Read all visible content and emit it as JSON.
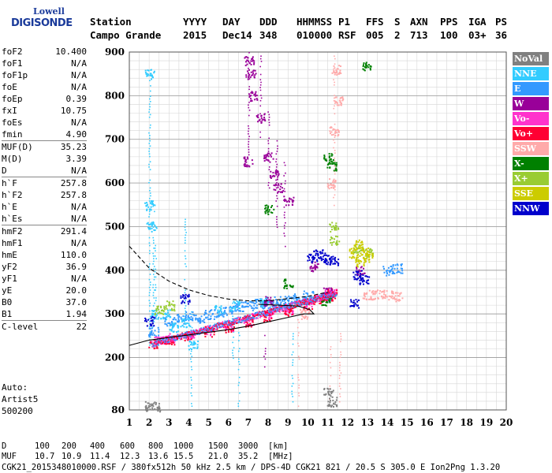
{
  "logo": {
    "line1": "Lowell",
    "line2": "DIGISONDE"
  },
  "header": {
    "row1": [
      "Station",
      "YYYY",
      "DAY",
      "DDD",
      "HHMMSS",
      "P1",
      "FFS",
      "S",
      "AXN",
      "PPS",
      "IGA",
      "PS"
    ],
    "row2": [
      "Campo Grande",
      "2015",
      "Dec14",
      "348",
      "010000",
      "RSF",
      "005",
      "2",
      "713",
      "100",
      "03+",
      "36"
    ]
  },
  "params": [
    {
      "name": "foF2",
      "value": "10.400",
      "sep": false
    },
    {
      "name": "foF1",
      "value": "N/A",
      "sep": false
    },
    {
      "name": "foF1p",
      "value": "N/A",
      "sep": false
    },
    {
      "name": "foE",
      "value": "N/A",
      "sep": false
    },
    {
      "name": "foEp",
      "value": "0.39",
      "sep": false
    },
    {
      "name": "fxI",
      "value": "10.75",
      "sep": false
    },
    {
      "name": "foEs",
      "value": "N/A",
      "sep": false
    },
    {
      "name": "fmin",
      "value": "4.90",
      "sep": false
    },
    {
      "name": "MUF(D)",
      "value": "35.23",
      "sep": true
    },
    {
      "name": "M(D)",
      "value": "3.39",
      "sep": false
    },
    {
      "name": "D",
      "value": "N/A",
      "sep": false
    },
    {
      "name": "h`F",
      "value": "257.8",
      "sep": true
    },
    {
      "name": "h`F2",
      "value": "257.8",
      "sep": false
    },
    {
      "name": "h`E",
      "value": "N/A",
      "sep": false
    },
    {
      "name": "h`Es",
      "value": "N/A",
      "sep": false
    },
    {
      "name": "hmF2",
      "value": "291.4",
      "sep": true
    },
    {
      "name": "hmF1",
      "value": "N/A",
      "sep": false
    },
    {
      "name": "hmE",
      "value": "110.0",
      "sep": false
    },
    {
      "name": "yF2",
      "value": "36.9",
      "sep": false
    },
    {
      "name": "yF1",
      "value": "N/A",
      "sep": false
    },
    {
      "name": "yE",
      "value": "20.0",
      "sep": false
    },
    {
      "name": "B0",
      "value": "37.0",
      "sep": false
    },
    {
      "name": "B1",
      "value": "1.94",
      "sep": false
    },
    {
      "name": "C-level",
      "value": "22",
      "sep": true
    }
  ],
  "auto": [
    "Auto:",
    "Artist5",
    "500200"
  ],
  "legend": [
    {
      "label": "NoVal",
      "color": "#808080"
    },
    {
      "label": "NNE",
      "color": "#33ccff"
    },
    {
      "label": "E",
      "color": "#3399ff"
    },
    {
      "label": "W",
      "color": "#990099"
    },
    {
      "label": "Vo-",
      "color": "#ff33cc"
    },
    {
      "label": "Vo+",
      "color": "#ff0033"
    },
    {
      "label": "SSW",
      "color": "#ffaaaa"
    },
    {
      "label": "X-",
      "color": "#008000"
    },
    {
      "label": "X+",
      "color": "#99cc33"
    },
    {
      "label": "SSE",
      "color": "#cccc00"
    },
    {
      "label": "NNW",
      "color": "#0000cc"
    }
  ],
  "footer": {
    "d_label": "D",
    "d_values": [
      "100",
      "200",
      "400",
      "600",
      "800",
      "1000",
      "1500",
      "3000",
      "[km]"
    ],
    "muf_label": "MUF",
    "muf_values": [
      "10.7",
      "10.9",
      "11.4",
      "12.3",
      "13.6",
      "15.5",
      "21.0",
      "35.2",
      "[MHz]"
    ],
    "info": "CGK21_2015348010000.RSF / 380fx512h 50 kHz 2.5 km / DPS-4D CGK21 821 / 20.5 S 305.0 E Ion2Png 1.3.20"
  },
  "chart_data": {
    "type": "scatter",
    "xlim": [
      1,
      20
    ],
    "ylim": [
      80,
      900
    ],
    "x_ticks": [
      1,
      2,
      3,
      4,
      5,
      6,
      7,
      8,
      9,
      10,
      11,
      12,
      13,
      14,
      15,
      16,
      17,
      18,
      19,
      20
    ],
    "y_ticks": [
      80,
      200,
      300,
      400,
      500,
      600,
      700,
      800,
      900
    ],
    "grid": true,
    "legend_position": "right",
    "series": [
      {
        "name": "E",
        "color": "#3399ff",
        "points": [
          [
            2.2,
            260
          ],
          [
            3.0,
            285
          ],
          [
            3.5,
            290
          ],
          [
            4.0,
            295
          ],
          [
            4.5,
            290
          ],
          [
            5.0,
            300
          ],
          [
            5.5,
            305
          ],
          [
            6.0,
            310
          ],
          [
            6.5,
            318
          ],
          [
            7.0,
            320
          ],
          [
            7.5,
            325
          ],
          [
            8.0,
            322
          ],
          [
            8.5,
            330
          ],
          [
            9.0,
            332
          ],
          [
            9.5,
            338
          ],
          [
            10.0,
            345
          ],
          [
            11.0,
            340
          ],
          [
            14.0,
            400
          ],
          [
            14.5,
            405
          ]
        ]
      },
      {
        "name": "NNE",
        "color": "#33ccff",
        "points": [
          [
            2.0,
            550
          ],
          [
            2.1,
            500
          ],
          [
            2.0,
            850
          ],
          [
            2.3,
            300
          ],
          [
            2.8,
            300
          ],
          [
            3.2,
            270
          ],
          [
            3.8,
            280
          ],
          [
            4.2,
            230
          ],
          [
            5.5,
            310
          ],
          [
            6.3,
            320
          ],
          [
            7.8,
            330
          ]
        ]
      },
      {
        "name": "Vo-",
        "color": "#ff33cc",
        "points": [
          [
            2.5,
            240
          ],
          [
            3.0,
            245
          ],
          [
            4.0,
            252
          ],
          [
            5.0,
            262
          ],
          [
            6.0,
            272
          ],
          [
            7.0,
            285
          ],
          [
            8.0,
            298
          ],
          [
            9.0,
            310
          ],
          [
            10.0,
            325
          ],
          [
            10.5,
            340
          ],
          [
            11.0,
            345
          ],
          [
            11.2,
            350
          ]
        ]
      },
      {
        "name": "Vo+",
        "color": "#ff0033",
        "points": [
          [
            2.2,
            232
          ],
          [
            3.0,
            240
          ],
          [
            4.0,
            250
          ],
          [
            5.0,
            260
          ],
          [
            6.0,
            270
          ],
          [
            7.0,
            282
          ],
          [
            8.0,
            295
          ],
          [
            9.0,
            308
          ],
          [
            10.0,
            322
          ],
          [
            10.5,
            335
          ],
          [
            11.0,
            342
          ],
          [
            11.2,
            348
          ]
        ]
      },
      {
        "name": "W",
        "color": "#990099",
        "points": [
          [
            7.0,
            880
          ],
          [
            7.1,
            850
          ],
          [
            7.2,
            800
          ],
          [
            7.6,
            750
          ],
          [
            7.0,
            650
          ],
          [
            8.0,
            660
          ],
          [
            8.3,
            620
          ],
          [
            8.5,
            590
          ],
          [
            9.0,
            560
          ],
          [
            8.0,
            330
          ],
          [
            10.3,
            410
          ],
          [
            11.0,
            350
          ],
          [
            12.6,
            400
          ]
        ]
      },
      {
        "name": "NNW",
        "color": "#0000cc",
        "points": [
          [
            2.0,
            285
          ],
          [
            10.2,
            430
          ],
          [
            10.5,
            440
          ],
          [
            10.8,
            430
          ],
          [
            11.0,
            425
          ],
          [
            11.3,
            420
          ],
          [
            12.5,
            390
          ],
          [
            12.8,
            380
          ],
          [
            12.3,
            325
          ],
          [
            3.8,
            335
          ]
        ]
      },
      {
        "name": "SSW",
        "color": "#ffaaaa",
        "points": [
          [
            11.4,
            860
          ],
          [
            11.5,
            790
          ],
          [
            11.3,
            720
          ],
          [
            11.2,
            600
          ],
          [
            9.8,
            300
          ],
          [
            13.0,
            345
          ],
          [
            13.5,
            345
          ],
          [
            14.0,
            345
          ],
          [
            14.5,
            340
          ]
        ]
      },
      {
        "name": "X-",
        "color": "#008000",
        "points": [
          [
            11.0,
            660
          ],
          [
            11.2,
            640
          ],
          [
            8.0,
            540
          ],
          [
            9.0,
            370
          ],
          [
            10.9,
            330
          ],
          [
            12.9,
            870
          ]
        ]
      },
      {
        "name": "X+",
        "color": "#99cc33",
        "points": [
          [
            11.3,
            500
          ],
          [
            11.3,
            470
          ],
          [
            12.5,
            450
          ],
          [
            13.0,
            440
          ],
          [
            2.5,
            310
          ],
          [
            3.0,
            320
          ]
        ]
      },
      {
        "name": "SSE",
        "color": "#cccc00",
        "points": [
          [
            12.3,
            440
          ],
          [
            12.5,
            460
          ],
          [
            12.8,
            445
          ],
          [
            13.0,
            430
          ],
          [
            12.6,
            420
          ]
        ]
      },
      {
        "name": "NoVal",
        "color": "#808080",
        "points": [
          [
            2.0,
            90
          ],
          [
            2.3,
            88
          ],
          [
            11.0,
            120
          ],
          [
            11.2,
            100
          ]
        ]
      }
    ],
    "vertical_streaks": [
      {
        "x": 2.0,
        "from": 230,
        "to": 860,
        "color": "#33ccff"
      },
      {
        "x": 2.2,
        "from": 260,
        "to": 560,
        "color": "#33ccff"
      },
      {
        "x": 2.3,
        "from": 290,
        "to": 480,
        "color": "#33ccff"
      },
      {
        "x": 3.8,
        "from": 290,
        "to": 520,
        "color": "#33ccff"
      },
      {
        "x": 4.1,
        "from": 90,
        "to": 310,
        "color": "#33ccff"
      },
      {
        "x": 6.2,
        "from": 200,
        "to": 330,
        "color": "#33ccff"
      },
      {
        "x": 6.5,
        "from": 90,
        "to": 300,
        "color": "#33ccff"
      },
      {
        "x": 7.0,
        "from": 660,
        "to": 900,
        "color": "#990099"
      },
      {
        "x": 7.6,
        "from": 700,
        "to": 900,
        "color": "#990099"
      },
      {
        "x": 8.0,
        "from": 590,
        "to": 780,
        "color": "#990099"
      },
      {
        "x": 8.4,
        "from": 500,
        "to": 700,
        "color": "#990099"
      },
      {
        "x": 8.8,
        "from": 450,
        "to": 650,
        "color": "#990099"
      },
      {
        "x": 7.8,
        "from": 180,
        "to": 260,
        "color": "#990099"
      },
      {
        "x": 11.3,
        "from": 550,
        "to": 900,
        "color": "#ffaaaa"
      },
      {
        "x": 11.1,
        "from": 100,
        "to": 230,
        "color": "#ffaaaa"
      },
      {
        "x": 11.6,
        "from": 100,
        "to": 260,
        "color": "#ffaaaa"
      },
      {
        "x": 9.2,
        "from": 100,
        "to": 260,
        "color": "#33ccff"
      },
      {
        "x": 9.5,
        "from": 90,
        "to": 290,
        "color": "#ffaaaa"
      }
    ],
    "profile_solid": [
      [
        1.0,
        228
      ],
      [
        2.0,
        240
      ],
      [
        3.0,
        246
      ],
      [
        4.0,
        252
      ],
      [
        5.0,
        258
      ],
      [
        6.0,
        264
      ],
      [
        7.0,
        272
      ],
      [
        8.0,
        282
      ],
      [
        9.0,
        292
      ],
      [
        9.8,
        300
      ],
      [
        10.3,
        300
      ],
      [
        10.1,
        310
      ],
      [
        9.5,
        318
      ],
      [
        8.5,
        320
      ],
      [
        7.5,
        322
      ]
    ],
    "profile_dashed": [
      [
        1.0,
        455
      ],
      [
        1.5,
        430
      ],
      [
        2.0,
        405
      ],
      [
        3.0,
        375
      ],
      [
        4.0,
        355
      ],
      [
        5.0,
        342
      ],
      [
        6.0,
        334
      ],
      [
        7.0,
        330
      ],
      [
        8.0,
        330
      ],
      [
        9.0,
        335
      ],
      [
        10.0,
        340
      ],
      [
        11.0,
        350
      ]
    ]
  }
}
